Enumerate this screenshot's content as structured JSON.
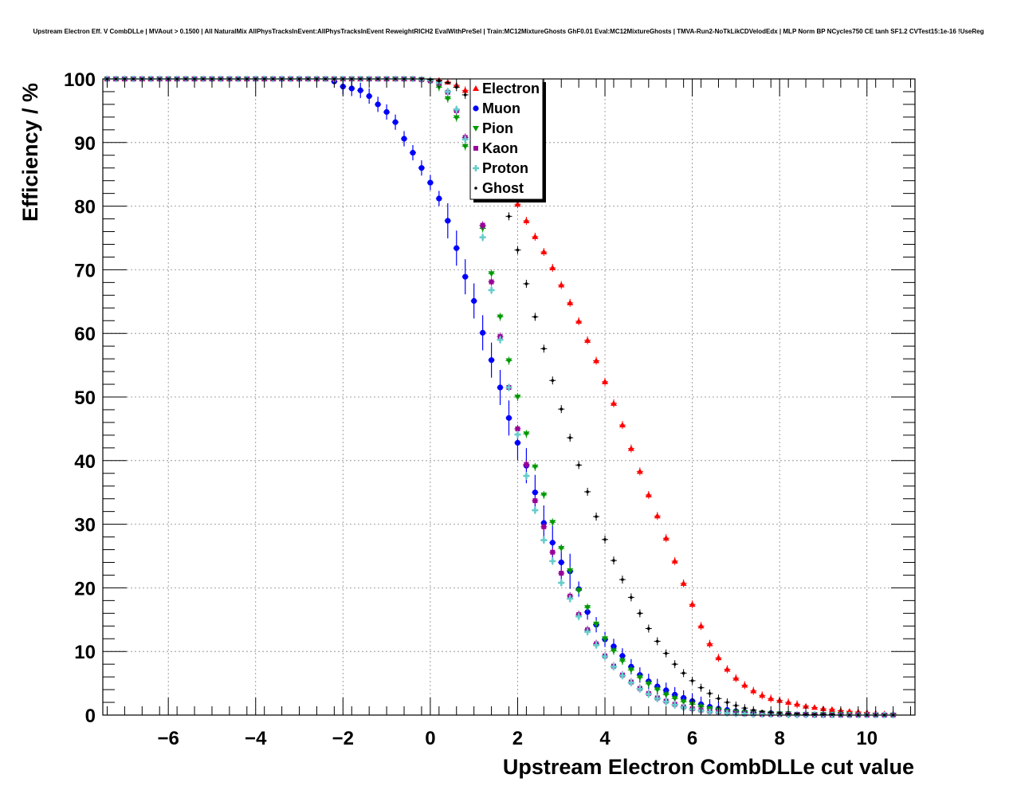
{
  "chart_data": {
    "type": "scatter",
    "title": "Upstream Electron Eff. V CombDLLe | MVAout > 0.1500 | All NaturalMix AllPhysTracksInEvent:AllPhysTracksInEvent ReweightRICH2 EvalWithPreSel | Train:MC12MixtureGhosts GhF0.01 Eval:MC12MixtureGhosts | TMVA-Run2-NoTkLikCDVelodEdx | MLP Norm BP NCycles750 CE tanh SF1.2 CVTest15:1e-16 !UseReg",
    "xlabel": "Upstream Electron CombDLLe cut value",
    "ylabel": "Efficiency / %",
    "xlim": [
      -7.5,
      11.1
    ],
    "ylim": [
      0,
      100
    ],
    "xticks": [
      -6,
      -4,
      -2,
      0,
      2,
      4,
      6,
      8,
      10
    ],
    "xtick_labels": [
      "−6",
      "−4",
      "−2",
      "0",
      "2",
      "4",
      "6",
      "8",
      "10"
    ],
    "yticks": [
      0,
      10,
      20,
      30,
      40,
      50,
      60,
      70,
      80,
      90,
      100
    ],
    "ytick_labels": [
      "0",
      "10",
      "20",
      "30",
      "40",
      "50",
      "60",
      "70",
      "80",
      "90",
      "100"
    ],
    "grid": true,
    "legend_position": "top-center",
    "x": [
      -7.4,
      -7.2,
      -7.0,
      -6.8,
      -6.6,
      -6.4,
      -6.2,
      -6.0,
      -5.8,
      -5.6,
      -5.4,
      -5.2,
      -5.0,
      -4.8,
      -4.6,
      -4.4,
      -4.2,
      -4.0,
      -3.8,
      -3.6,
      -3.4,
      -3.2,
      -3.0,
      -2.8,
      -2.6,
      -2.4,
      -2.2,
      -2.0,
      -1.8,
      -1.6,
      -1.4,
      -1.2,
      -1.0,
      -0.8,
      -0.6,
      -0.4,
      -0.2,
      0.0,
      0.2,
      0.4,
      0.6,
      0.8,
      1.0,
      1.2,
      1.4,
      1.6,
      1.8,
      2.0,
      2.2,
      2.4,
      2.6,
      2.8,
      3.0,
      3.2,
      3.4,
      3.6,
      3.8,
      4.0,
      4.2,
      4.4,
      4.6,
      4.8,
      5.0,
      5.2,
      5.4,
      5.6,
      5.8,
      6.0,
      6.2,
      6.4,
      6.6,
      6.8,
      7.0,
      7.2,
      7.4,
      7.6,
      7.8,
      8.0,
      8.2,
      8.4,
      8.6,
      8.8,
      9.0,
      9.2,
      9.4,
      9.6,
      9.8,
      10.0,
      10.2,
      10.4,
      10.6
    ],
    "series": [
      {
        "name": "Electron",
        "color": "#ff0000",
        "marker": "triangle-up",
        "values": [
          100,
          100,
          100,
          100,
          100,
          100,
          100,
          100,
          100,
          100,
          100,
          100,
          100,
          100,
          100,
          100,
          100,
          100,
          100,
          100,
          100,
          100,
          100,
          100,
          100,
          100,
          100,
          100,
          100,
          100,
          100,
          100,
          100,
          100,
          100,
          100,
          100,
          99.9,
          99.8,
          99.5,
          99,
          98.2,
          96.9,
          95,
          92.5,
          89.3,
          85.2,
          80.3,
          77.7,
          75.2,
          72.8,
          70.3,
          67.6,
          64.8,
          61.9,
          58.9,
          55.7,
          52.4,
          49,
          45.6,
          41.9,
          38.3,
          34.6,
          31.3,
          27.8,
          24.2,
          20.7,
          17.4,
          14,
          11.2,
          9,
          7.2,
          5.8,
          4.7,
          3.8,
          3.1,
          2.6,
          2.3,
          2,
          1.7,
          1.4,
          1.2,
          1,
          0.9,
          0.7,
          0.6,
          0.5,
          0.4,
          0.3,
          0.2,
          0.2
        ]
      },
      {
        "name": "Muon",
        "color": "#0000ff",
        "marker": "circle",
        "err": 1.2,
        "values": [
          100,
          100,
          100,
          100,
          100,
          100,
          100,
          100,
          100,
          100,
          100,
          100,
          100,
          100,
          100,
          100,
          100,
          100,
          100,
          100,
          100,
          100,
          100,
          100,
          100,
          100,
          99.6,
          98.8,
          98.5,
          98.2,
          97.3,
          96,
          94.8,
          93.2,
          90.6,
          88.4,
          86,
          83.7,
          81.2,
          77.7,
          73.4,
          68.9,
          65.1,
          60.1,
          55.8,
          51.5,
          46.7,
          42.8,
          39.2,
          35,
          30.2,
          27.1,
          24,
          22.6,
          19.8,
          16.2,
          14.2,
          11.9,
          10.8,
          9.3,
          7.6,
          6.3,
          5.3,
          4.5,
          3.9,
          3.2,
          2.7,
          2.2,
          1.7,
          1.3,
          1,
          0.8,
          0.6,
          0.5,
          0.4,
          0.3,
          0.3,
          0.2,
          0.2,
          0.1,
          0.1,
          0.1,
          0.1,
          0.1,
          0.1,
          0,
          0,
          0,
          0,
          0,
          0
        ]
      },
      {
        "name": "Pion",
        "color": "#009900",
        "marker": "triangle-down",
        "values": [
          100,
          100,
          100,
          100,
          100,
          100,
          100,
          100,
          100,
          100,
          100,
          100,
          100,
          100,
          100,
          100,
          100,
          100,
          100,
          100,
          100,
          100,
          100,
          100,
          100,
          100,
          100,
          100,
          100,
          100,
          100,
          100,
          100,
          100,
          100,
          100,
          99.9,
          99.6,
          98.7,
          96.9,
          93.9,
          89.4,
          83.1,
          76.5,
          69.4,
          62.6,
          55.7,
          50,
          44.2,
          39,
          34.6,
          30.3,
          26.2,
          22.7,
          19.6,
          16.9,
          14.3,
          12,
          10.1,
          8.5,
          7.1,
          5.9,
          4.9,
          4,
          3.2,
          2.6,
          2.1,
          1.7,
          1.3,
          1,
          0.8,
          0.6,
          0.5,
          0.4,
          0.3,
          0.3,
          0.2,
          0.2,
          0.2,
          0.1,
          0.1,
          0.1,
          0.1,
          0.1,
          0.1,
          0.1,
          0,
          0,
          0,
          0,
          0
        ]
      },
      {
        "name": "Kaon",
        "color": "#990099",
        "marker": "square",
        "values": [
          100,
          100,
          100,
          100,
          100,
          100,
          100,
          100,
          100,
          100,
          100,
          100,
          100,
          100,
          100,
          100,
          100,
          100,
          100,
          100,
          100,
          100,
          100,
          100,
          100,
          100,
          100,
          100,
          100,
          100,
          100,
          100,
          100,
          100,
          100,
          100,
          99.9,
          99.7,
          99.3,
          97.9,
          95,
          90.8,
          84.6,
          77,
          68.1,
          59.5,
          51.5,
          45,
          39.4,
          33.7,
          29.6,
          25.6,
          22.3,
          18.7,
          15.8,
          13.4,
          11.2,
          9.3,
          7.7,
          6.3,
          5.2,
          4.2,
          3.4,
          2.7,
          2.2,
          1.7,
          1.3,
          1,
          0.8,
          0.6,
          0.5,
          0.4,
          0.3,
          0.2,
          0.2,
          0.1,
          0.1,
          0.1,
          0.1,
          0.1,
          0.1,
          0,
          0,
          0,
          0,
          0,
          0,
          0,
          0,
          0,
          0
        ]
      },
      {
        "name": "Proton",
        "color": "#66cccc",
        "marker": "cross",
        "values": [
          100,
          100,
          100,
          100,
          100,
          100,
          100,
          100,
          100,
          100,
          100,
          100,
          100,
          100,
          100,
          100,
          100,
          100,
          100,
          100,
          100,
          100,
          100,
          100,
          100,
          100,
          100,
          100,
          100,
          100,
          100,
          100,
          100,
          100,
          100,
          100,
          99.9,
          99.8,
          99.4,
          98,
          95.2,
          90.5,
          83.2,
          75.1,
          66.8,
          59,
          51.5,
          44.1,
          37.6,
          32.2,
          27.5,
          24.2,
          20.8,
          18.3,
          15.5,
          13.1,
          11,
          9.2,
          7.6,
          6.2,
          5.1,
          4.1,
          3.3,
          2.6,
          2.1,
          1.6,
          1.2,
          0.9,
          0.7,
          0.5,
          0.4,
          0.3,
          0.2,
          0.2,
          0.1,
          0.1,
          0.1,
          0.1,
          0,
          0,
          0,
          0,
          0,
          0,
          0,
          0,
          0,
          0,
          0,
          0,
          0
        ]
      },
      {
        "name": "Ghost",
        "color": "#000000",
        "marker": "dot",
        "values": [
          100,
          100,
          100,
          100,
          100,
          100,
          100,
          100,
          100,
          100,
          100,
          100,
          100,
          100,
          100,
          100,
          100,
          100,
          100,
          100,
          100,
          100,
          100,
          100,
          100,
          100,
          100,
          100,
          100,
          100,
          100,
          100,
          100,
          100,
          100,
          100,
          100,
          99.9,
          99.7,
          99.4,
          98.7,
          97.5,
          95.6,
          92.8,
          89,
          84.5,
          78.4,
          73.1,
          67.8,
          62.6,
          57.6,
          52.6,
          48.1,
          43.6,
          39.3,
          35.1,
          31.2,
          27.6,
          24.3,
          21.3,
          18.5,
          16,
          13.6,
          11.6,
          9.7,
          8,
          6.6,
          5.4,
          4.3,
          3.4,
          2.6,
          2,
          1.5,
          1.1,
          0.8,
          0.6,
          0.4,
          0.3,
          0.2,
          0.2,
          0.1,
          0.1,
          0.1,
          0.1,
          0,
          0,
          0,
          0,
          0,
          0,
          0
        ]
      }
    ]
  }
}
